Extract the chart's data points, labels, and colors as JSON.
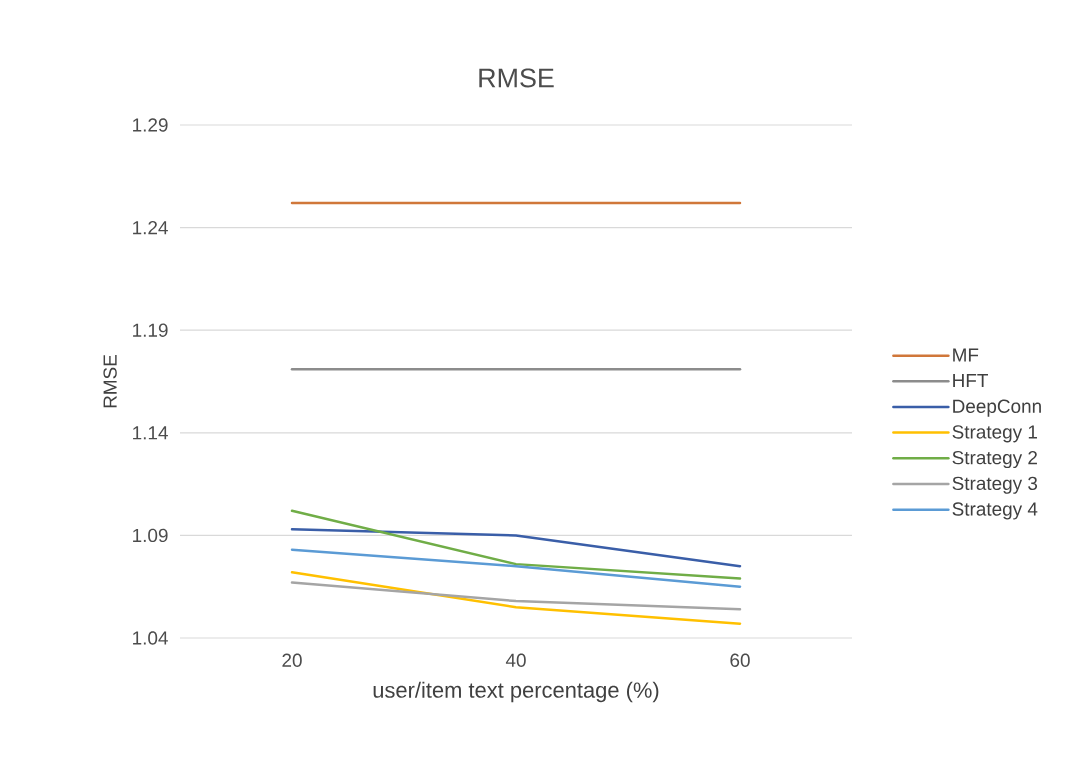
{
  "chart_data": {
    "type": "line",
    "title": "RMSE",
    "xlabel": "user/item text percentage (%)",
    "ylabel": "RMSE",
    "categories": [
      "20",
      "40",
      "60"
    ],
    "series": [
      {
        "name": "MF",
        "color": "#d0773a",
        "values": [
          1.252,
          1.252,
          1.252
        ]
      },
      {
        "name": "HFT",
        "color": "#8c8c8c",
        "values": [
          1.171,
          1.171,
          1.171
        ]
      },
      {
        "name": "DeepConn",
        "color": "#3a5ea8",
        "values": [
          1.093,
          1.09,
          1.075
        ]
      },
      {
        "name": "Strategy 1",
        "color": "#ffc000",
        "values": [
          1.072,
          1.055,
          1.047
        ]
      },
      {
        "name": "Strategy 2",
        "color": "#70ad47",
        "values": [
          1.102,
          1.076,
          1.069
        ]
      },
      {
        "name": "Strategy 3",
        "color": "#a5a5a5",
        "values": [
          1.067,
          1.058,
          1.054
        ]
      },
      {
        "name": "Strategy 4",
        "color": "#5b9bd5",
        "values": [
          1.083,
          1.075,
          1.065
        ]
      }
    ],
    "ylim": [
      1.04,
      1.29
    ],
    "yticks": [
      1.04,
      1.09,
      1.14,
      1.19,
      1.24,
      1.29
    ],
    "grid": "y",
    "legend": "right",
    "marker": "none",
    "line_style": "solid"
  }
}
